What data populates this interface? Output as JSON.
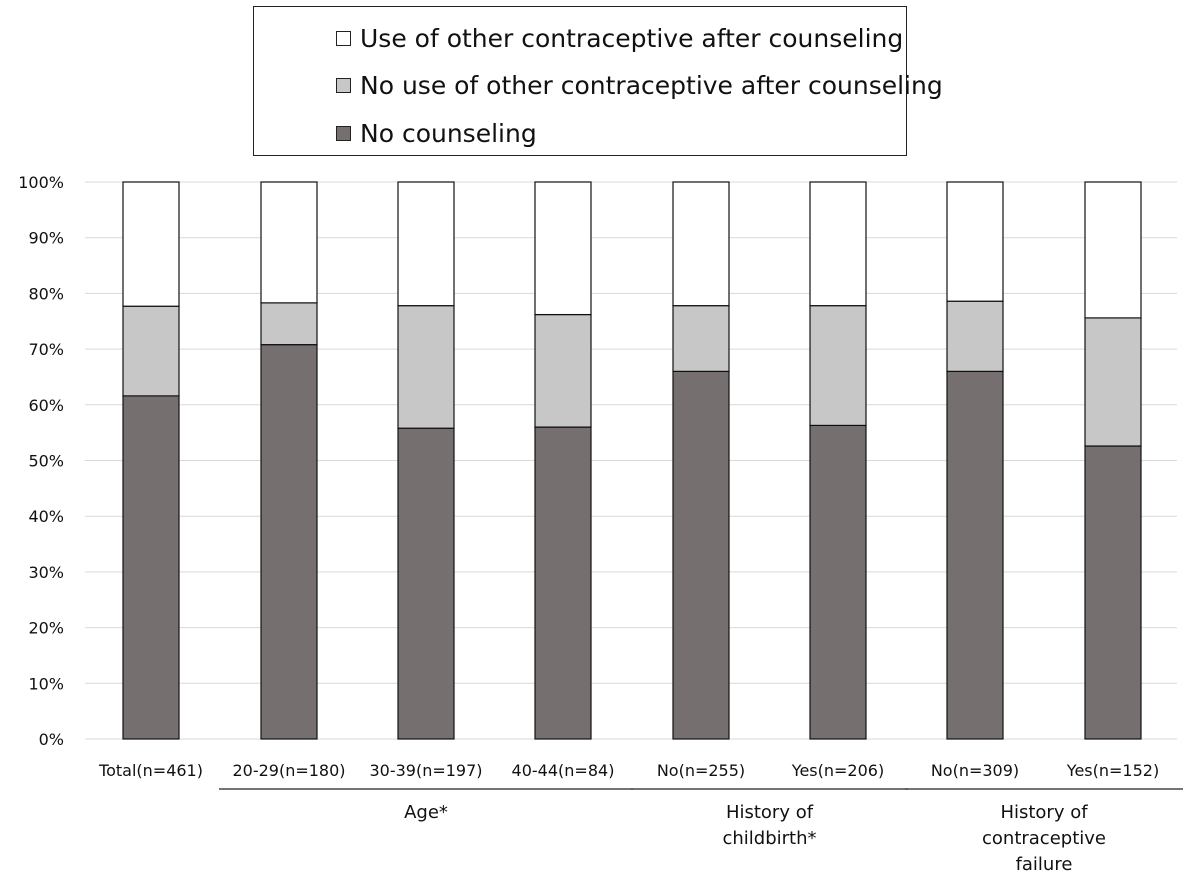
{
  "chart_data": {
    "type": "bar",
    "stacked": true,
    "title": "",
    "xlabel": "",
    "ylabel": "",
    "ylim": [
      0,
      100
    ],
    "y_ticks": [
      "0%",
      "10%",
      "20%",
      "30%",
      "40%",
      "50%",
      "60%",
      "70%",
      "80%",
      "90%",
      "100%"
    ],
    "grid": true,
    "legend_position": "top",
    "categories": [
      "Total(n=461)",
      "20-29(n=180)",
      "30-39(n=197)",
      "40-44(n=84)",
      "No(n=255)",
      "Yes(n=206)",
      "No(n=309)",
      "Yes(n=152)"
    ],
    "series": [
      {
        "name": "No counseling",
        "color": "#756f6f",
        "values": [
          61.6,
          70.8,
          55.8,
          56.0,
          66.0,
          56.3,
          66.0,
          52.6
        ]
      },
      {
        "name": "No use of other contraceptive after counseling",
        "color": "#c7c7c7",
        "values": [
          16.1,
          7.5,
          22.0,
          20.2,
          11.8,
          21.5,
          12.6,
          23.0
        ]
      },
      {
        "name": "Use of other contraceptive after counseling",
        "color": "#ffffff",
        "values": [
          22.3,
          21.7,
          22.2,
          23.8,
          22.2,
          22.2,
          21.4,
          24.4
        ]
      }
    ],
    "legend_order": [
      2,
      1,
      0
    ],
    "groups": [
      {
        "label_lines": [
          "Age*"
        ],
        "start": 1,
        "end": 3
      },
      {
        "label_lines": [
          "History of",
          "childbirth*"
        ],
        "start": 4,
        "end": 5
      },
      {
        "label_lines": [
          "History of",
          "contraceptive",
          "failure"
        ],
        "start": 6,
        "end": 7
      }
    ]
  }
}
